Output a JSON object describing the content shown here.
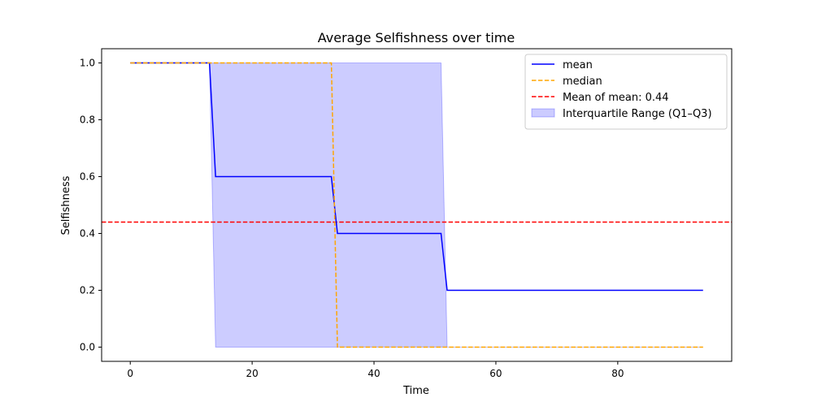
{
  "chart_data": {
    "type": "line",
    "title": "Average Selfishness over time",
    "xlabel": "Time",
    "ylabel": "Selfishness",
    "xlim": [
      -4.7,
      98.7
    ],
    "ylim": [
      -0.05,
      1.05
    ],
    "xticks": [
      0,
      20,
      40,
      60,
      80
    ],
    "yticks": [
      0.0,
      0.2,
      0.4,
      0.6,
      0.8,
      1.0
    ],
    "xtick_labels": [
      "0",
      "20",
      "40",
      "60",
      "80"
    ],
    "ytick_labels": [
      "0.0",
      "0.2",
      "0.4",
      "0.6",
      "0.8",
      "1.0"
    ],
    "grid": false,
    "legend_position": "top-right",
    "series": [
      {
        "name": "mean",
        "style": "solid",
        "color": "#0000ff",
        "points": [
          [
            0,
            1.0
          ],
          [
            13,
            1.0
          ],
          [
            14,
            0.6
          ],
          [
            33,
            0.6
          ],
          [
            34,
            0.4
          ],
          [
            51,
            0.4
          ],
          [
            52,
            0.2
          ],
          [
            94,
            0.2
          ]
        ]
      },
      {
        "name": "median",
        "style": "dashed",
        "color": "#ffa500",
        "points": [
          [
            0,
            1.0
          ],
          [
            33,
            1.0
          ],
          [
            34,
            0.0
          ],
          [
            94,
            0.0
          ]
        ]
      }
    ],
    "reference_line": {
      "name": "Mean of mean: 0.44",
      "value": 0.44,
      "style": "dashed",
      "color": "#ff0000"
    },
    "band": {
      "name": "Interquartile Range (Q1–Q3)",
      "color": "#0000ff",
      "opacity": 0.2,
      "upper": [
        [
          0,
          1.0
        ],
        [
          51,
          1.0
        ],
        [
          52,
          0.0
        ],
        [
          94,
          0.0
        ]
      ],
      "lower": [
        [
          0,
          1.0
        ],
        [
          13,
          1.0
        ],
        [
          14,
          0.0
        ],
        [
          94,
          0.0
        ]
      ]
    }
  }
}
